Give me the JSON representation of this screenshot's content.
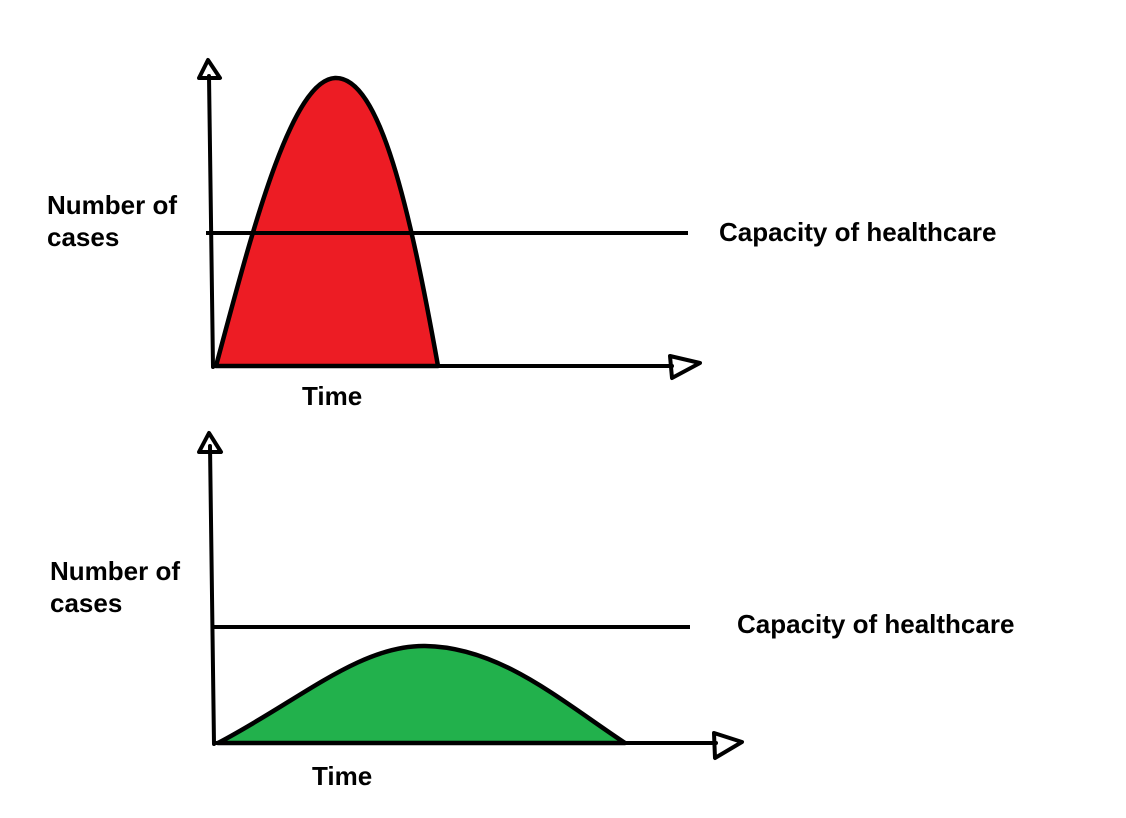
{
  "panels": [
    {
      "id": "top",
      "y_label_line1": "Number of",
      "y_label_line2": "cases",
      "x_label": "Time",
      "capacity_label": "Capacity of healthcare",
      "curve_color": "#ed1c24",
      "scenario": "peak-exceeds-capacity"
    },
    {
      "id": "bottom",
      "y_label_line1": "Number of",
      "y_label_line2": "cases",
      "x_label": "Time",
      "capacity_label": "Capacity of healthcare",
      "curve_color": "#22b14c",
      "scenario": "peak-below-capacity"
    }
  ],
  "colors": {
    "line": "#000000",
    "background": "#ffffff"
  }
}
